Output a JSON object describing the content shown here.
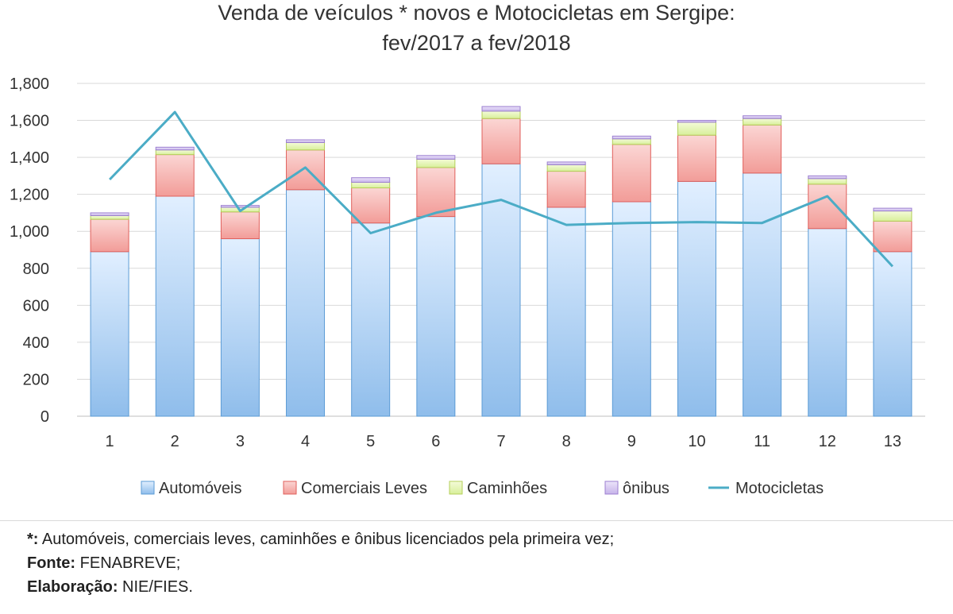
{
  "chart_data": {
    "type": "bar",
    "stacked": true,
    "title": [
      "Venda de veículos * novos e Motocicletas em Sergipe:",
      "fev/2017 a fev/2018"
    ],
    "categories": [
      "1",
      "2",
      "3",
      "4",
      "5",
      "6",
      "7",
      "8",
      "9",
      "10",
      "11",
      "12",
      "13"
    ],
    "ylim": [
      0,
      1800
    ],
    "yticks": [
      "0",
      "200",
      "400",
      "600",
      "800",
      "1,000",
      "1,200",
      "1,400",
      "1,600",
      "1,800"
    ],
    "grid": true,
    "legend_position": "bottom",
    "series": [
      {
        "name": "Automóveis",
        "kind": "bar",
        "color": "#9dc3ea",
        "values": [
          890,
          1190,
          960,
          1225,
          1045,
          1080,
          1365,
          1130,
          1160,
          1270,
          1315,
          1015,
          890
        ]
      },
      {
        "name": "Comerciais Leves",
        "kind": "bar",
        "color": "#f4a9a6",
        "values": [
          175,
          225,
          145,
          215,
          190,
          265,
          245,
          195,
          310,
          250,
          260,
          240,
          165
        ]
      },
      {
        "name": "Caminhões",
        "kind": "bar",
        "color": "#e4f4b3",
        "values": [
          20,
          25,
          25,
          40,
          30,
          45,
          40,
          35,
          30,
          70,
          35,
          30,
          55
        ]
      },
      {
        "name": "ônibus",
        "kind": "bar",
        "color": "#d7c8f0",
        "values": [
          15,
          15,
          10,
          15,
          25,
          20,
          25,
          15,
          15,
          10,
          15,
          15,
          15
        ]
      },
      {
        "name": "Motocicletas",
        "kind": "line",
        "color": "#4bacc6",
        "values": [
          1280,
          1645,
          1110,
          1345,
          990,
          1100,
          1170,
          1035,
          1045,
          1050,
          1045,
          1190,
          810
        ]
      }
    ]
  },
  "notes": {
    "line1_prefix": "*:",
    "line1_text": " Automóveis, comerciais leves, caminhões e ônibus licenciados pela primeira vez;",
    "line2_prefix": "Fonte:",
    "line2_text": " FENABREVE;",
    "line3_prefix": "Elaboração:",
    "line3_text": " NIE/FIES."
  }
}
